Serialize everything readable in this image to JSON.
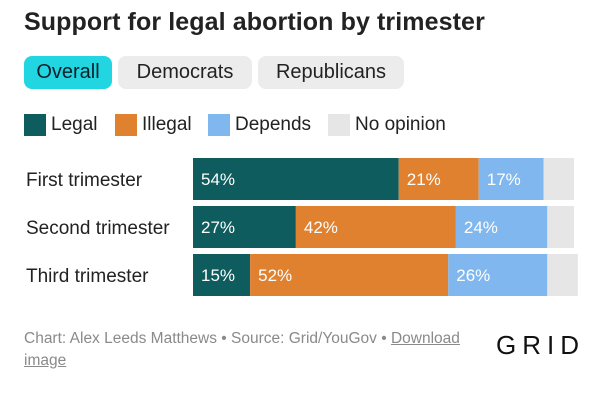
{
  "title": "Support for legal abortion by trimester",
  "tabs": [
    {
      "label": "Overall",
      "active": true
    },
    {
      "label": "Democrats",
      "active": false
    },
    {
      "label": "Republicans",
      "active": false
    }
  ],
  "legend": [
    {
      "label": "Legal",
      "color": "#0f5c5e"
    },
    {
      "label": "Illegal",
      "color": "#e0812f"
    },
    {
      "label": "Depends",
      "color": "#7fb7ee"
    },
    {
      "label": "No opinion",
      "color": "#e6e6e6"
    }
  ],
  "chart_data": {
    "type": "bar",
    "orientation": "horizontal",
    "stacked": true,
    "title": "Support for legal abortion by trimester",
    "categories": [
      "First trimester",
      "Second trimester",
      "Third trimester"
    ],
    "series": [
      {
        "name": "Legal",
        "color": "#0f5c5e",
        "values": [
          54,
          27,
          15
        ],
        "labels": [
          "54%",
          "27%",
          "15%"
        ]
      },
      {
        "name": "Illegal",
        "color": "#e0812f",
        "values": [
          21,
          42,
          52
        ],
        "labels": [
          "21%",
          "42%",
          "52%"
        ]
      },
      {
        "name": "Depends",
        "color": "#7fb7ee",
        "values": [
          17,
          24,
          26
        ],
        "labels": [
          "17%",
          "24%",
          "26%"
        ]
      },
      {
        "name": "No opinion",
        "color": "#e6e6e6",
        "values": [
          8,
          7,
          8
        ],
        "labels": [
          "",
          "",
          ""
        ]
      }
    ],
    "xlim": [
      0,
      100
    ]
  },
  "footer": {
    "credit": "Chart: Alex Leeds Matthews • Source: Grid/YouGov • ",
    "download_label": "Download image"
  },
  "brand": "GRID"
}
